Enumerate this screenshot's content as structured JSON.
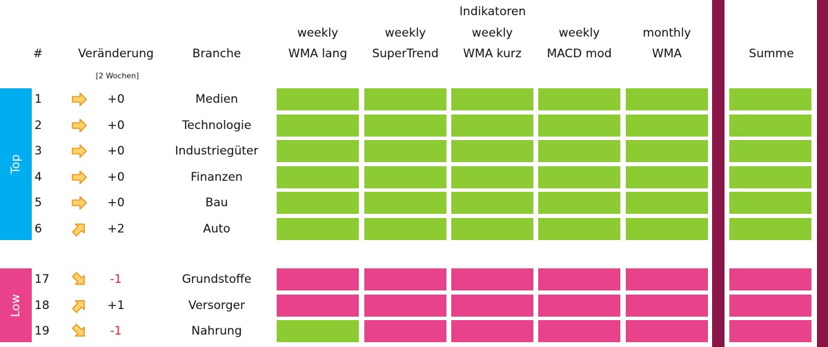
{
  "header": {
    "group_label": "Indikatoren",
    "rank": "#",
    "change": "Veränderung",
    "change_note": "[2 Wochen]",
    "sector": "Branche",
    "indicators": [
      [
        "weekly",
        "WMA lang"
      ],
      [
        "weekly",
        "SuperTrend"
      ],
      [
        "weekly",
        "WMA kurz"
      ],
      [
        "weekly",
        "MACD mod"
      ],
      [
        "monthly",
        "WMA"
      ]
    ],
    "total": "Summe"
  },
  "groups": [
    {
      "label": "Top",
      "color": "#00aeef",
      "rows": [
        {
          "rank": 1,
          "arrow": "right",
          "change": "+0",
          "change_color": "#111111",
          "sector": "Medien",
          "cells": [
            "#8dcb32",
            "#8dcb32",
            "#8dcb32",
            "#8dcb32",
            "#8dcb32"
          ],
          "total": "#8dcb32"
        },
        {
          "rank": 2,
          "arrow": "right",
          "change": "+0",
          "change_color": "#111111",
          "sector": "Technologie",
          "cells": [
            "#8dcb32",
            "#8dcb32",
            "#8dcb32",
            "#8dcb32",
            "#8dcb32"
          ],
          "total": "#8dcb32"
        },
        {
          "rank": 3,
          "arrow": "right",
          "change": "+0",
          "change_color": "#111111",
          "sector": "Industriegüter",
          "cells": [
            "#8dcb32",
            "#8dcb32",
            "#8dcb32",
            "#8dcb32",
            "#8dcb32"
          ],
          "total": "#8dcb32"
        },
        {
          "rank": 4,
          "arrow": "right",
          "change": "+0",
          "change_color": "#111111",
          "sector": "Finanzen",
          "cells": [
            "#8dcb32",
            "#8dcb32",
            "#8dcb32",
            "#8dcb32",
            "#8dcb32"
          ],
          "total": "#8dcb32"
        },
        {
          "rank": 5,
          "arrow": "right",
          "change": "+0",
          "change_color": "#111111",
          "sector": "Bau",
          "cells": [
            "#8dcb32",
            "#8dcb32",
            "#8dcb32",
            "#8dcb32",
            "#8dcb32"
          ],
          "total": "#8dcb32"
        },
        {
          "rank": 6,
          "arrow": "up",
          "change": "+2",
          "change_color": "#111111",
          "sector": "Auto",
          "cells": [
            "#8dcb32",
            "#8dcb32",
            "#8dcb32",
            "#8dcb32",
            "#8dcb32"
          ],
          "total": "#8dcb32"
        }
      ]
    },
    {
      "label": "Low",
      "color": "#e8428b",
      "rows": [
        {
          "rank": 17,
          "arrow": "down",
          "change": "-1",
          "change_color": "#ee1c25",
          "sector": "Grundstoffe",
          "cells": [
            "#e8428b",
            "#e8428b",
            "#e8428b",
            "#e8428b",
            "#e8428b"
          ],
          "total": "#e8428b"
        },
        {
          "rank": 18,
          "arrow": "up",
          "change": "+1",
          "change_color": "#111111",
          "sector": "Versorger",
          "cells": [
            "#e8428b",
            "#e8428b",
            "#e8428b",
            "#e8428b",
            "#e8428b"
          ],
          "total": "#e8428b"
        },
        {
          "rank": 19,
          "arrow": "down",
          "change": "-1",
          "change_color": "#ee1c25",
          "sector": "Nahrung",
          "cells": [
            "#8dcb32",
            "#e8428b",
            "#e8428b",
            "#e8428b",
            "#e8428b"
          ],
          "total": "#e8428b"
        }
      ]
    }
  ]
}
